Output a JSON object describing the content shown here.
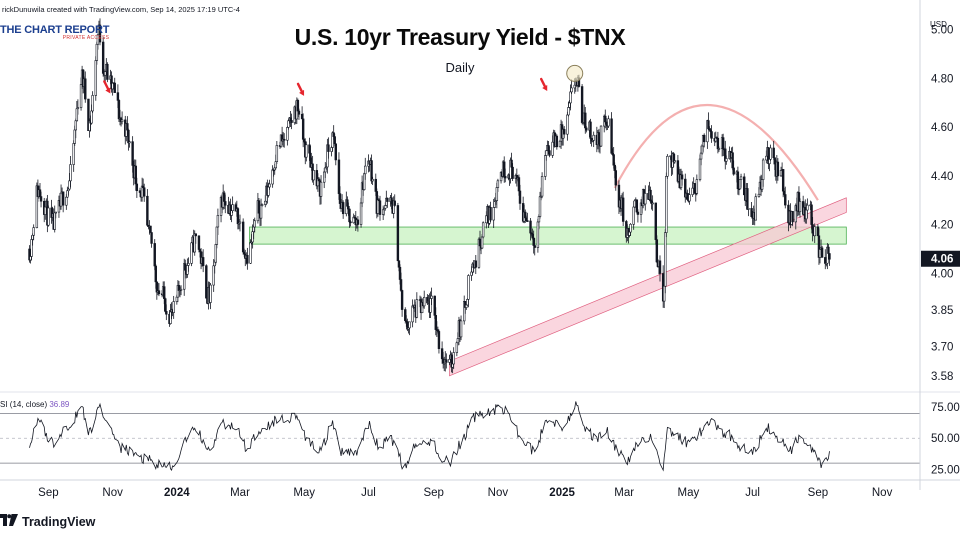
{
  "header": {
    "credit": "rickDunuwila created with TradingView.com, Sep 14, 2025 17:19 UTC-4"
  },
  "brand": {
    "name": "THE CHART REPORT",
    "tagline": "PRIVATE ACCESS"
  },
  "footer": {
    "brand": "TradingView"
  },
  "colors": {
    "candle": "#131722",
    "support_band": "#c8f2c0",
    "support_edge": "#4caf50",
    "trend_channel": "#f8c8d4",
    "trend_edge": "#e06080",
    "arc": "#f4b0b0",
    "marker_arrow": "#e5262e",
    "highlight_circle": "#f3e9c4",
    "axis_text": "#131722",
    "price_badge": "#131722"
  },
  "chart_data": [
    {
      "type": "candlestick",
      "title": "U.S. 10yr Treasury Yield - $TNX",
      "subtitle": "Daily",
      "currency_label": "USD",
      "y_ticks": [
        "5.00",
        "4.80",
        "4.60",
        "4.40",
        "4.20",
        "4.00",
        "3.85",
        "3.70",
        "3.58"
      ],
      "ylim": [
        3.53,
        5.08
      ],
      "x_ticks": [
        "Sep",
        "Nov",
        "2024",
        "Mar",
        "May",
        "Jul",
        "Sep",
        "Nov",
        "2025",
        "Mar",
        "May",
        "Jul",
        "Sep",
        "Nov"
      ],
      "x_ticks_bold": [
        "2024",
        "2025"
      ],
      "last_price": "4.06",
      "path_points": [
        [
          "2023-08-14",
          4.1
        ],
        [
          "2023-08-22",
          4.34
        ],
        [
          "2023-09-05",
          4.2
        ],
        [
          "2023-09-19",
          4.35
        ],
        [
          "2023-10-03",
          4.8
        ],
        [
          "2023-10-10",
          4.62
        ],
        [
          "2023-10-19",
          4.99
        ],
        [
          "2023-10-24",
          4.84
        ],
        [
          "2023-11-01",
          4.76
        ],
        [
          "2023-11-10",
          4.62
        ],
        [
          "2023-11-28",
          4.34
        ],
        [
          "2023-12-06",
          4.15
        ],
        [
          "2023-12-15",
          3.93
        ],
        [
          "2023-12-27",
          3.83
        ],
        [
          "2024-01-10",
          4.03
        ],
        [
          "2024-01-19",
          4.14
        ],
        [
          "2024-02-01",
          3.9
        ],
        [
          "2024-02-13",
          4.31
        ],
        [
          "2024-02-26",
          4.25
        ],
        [
          "2024-03-08",
          4.08
        ],
        [
          "2024-03-20",
          4.27
        ],
        [
          "2024-04-10",
          4.54
        ],
        [
          "2024-04-25",
          4.68
        ],
        [
          "2024-05-03",
          4.5
        ],
        [
          "2024-05-15",
          4.35
        ],
        [
          "2024-05-28",
          4.55
        ],
        [
          "2024-06-05",
          4.28
        ],
        [
          "2024-06-19",
          4.21
        ],
        [
          "2024-07-01",
          4.47
        ],
        [
          "2024-07-10",
          4.28
        ],
        [
          "2024-07-24",
          4.28
        ],
        [
          "2024-08-05",
          3.78
        ],
        [
          "2024-08-14",
          3.85
        ],
        [
          "2024-08-29",
          3.87
        ],
        [
          "2024-09-11",
          3.65
        ],
        [
          "2024-09-16",
          3.62
        ],
        [
          "2024-09-26",
          3.78
        ],
        [
          "2024-10-08",
          4.03
        ],
        [
          "2024-10-23",
          4.24
        ],
        [
          "2024-11-06",
          4.43
        ],
        [
          "2024-11-15",
          4.43
        ],
        [
          "2024-11-26",
          4.24
        ],
        [
          "2024-12-06",
          4.15
        ],
        [
          "2024-12-18",
          4.52
        ],
        [
          "2025-01-02",
          4.57
        ],
        [
          "2025-01-14",
          4.79
        ],
        [
          "2025-01-22",
          4.62
        ],
        [
          "2025-02-03",
          4.54
        ],
        [
          "2025-02-12",
          4.62
        ],
        [
          "2025-02-25",
          4.3
        ],
        [
          "2025-03-04",
          4.15
        ],
        [
          "2025-03-12",
          4.27
        ],
        [
          "2025-03-26",
          4.33
        ],
        [
          "2025-04-04",
          4.0
        ],
        [
          "2025-04-07",
          3.9
        ],
        [
          "2025-04-11",
          4.49
        ],
        [
          "2025-04-22",
          4.39
        ],
        [
          "2025-05-02",
          4.3
        ],
        [
          "2025-05-21",
          4.6
        ],
        [
          "2025-06-06",
          4.5
        ],
        [
          "2025-06-20",
          4.36
        ],
        [
          "2025-07-01",
          4.25
        ],
        [
          "2025-07-15",
          4.48
        ],
        [
          "2025-07-28",
          4.41
        ],
        [
          "2025-08-04",
          4.22
        ],
        [
          "2025-08-14",
          4.29
        ],
        [
          "2025-08-22",
          4.26
        ],
        [
          "2025-09-05",
          4.08
        ],
        [
          "2025-09-12",
          4.06
        ]
      ],
      "annotations": {
        "support_zone": {
          "from": 4.12,
          "to": 4.19,
          "start": "2024-03-10",
          "end": "2025-09-28"
        },
        "trend_channel": {
          "start": [
            "2024-09-16",
            3.58
          ],
          "end": [
            "2025-09-28",
            4.25
          ],
          "width": 0.06
        },
        "rounding_top_arc": {
          "points": [
            [
              "2025-02-20",
              4.35
            ],
            [
              "2025-05-22",
              4.69
            ],
            [
              "2025-09-01",
              4.3
            ]
          ]
        },
        "arrows": [
          [
            "2023-10-27",
            4.75
          ],
          [
            "2024-04-28",
            4.74
          ],
          [
            "2024-12-15",
            4.76
          ]
        ],
        "circle": [
          "2025-01-13",
          4.82
        ]
      }
    },
    {
      "type": "line",
      "series": [
        {
          "name": "RSI (14, close)"
        }
      ],
      "label": "RSI (14, close)",
      "value": "36.89",
      "y_ticks": [
        "75.00",
        "50.00",
        "25.00"
      ],
      "ylim": [
        18,
        84
      ],
      "guide_lines": [
        30,
        50,
        70
      ],
      "path_points": [
        [
          "2023-08-14",
          44
        ],
        [
          "2023-08-22",
          64
        ],
        [
          "2023-09-05",
          46
        ],
        [
          "2023-09-19",
          60
        ],
        [
          "2023-10-03",
          72
        ],
        [
          "2023-10-10",
          55
        ],
        [
          "2023-10-19",
          76
        ],
        [
          "2023-10-24",
          62
        ],
        [
          "2023-11-01",
          55
        ],
        [
          "2023-11-10",
          42
        ],
        [
          "2023-11-28",
          34
        ],
        [
          "2023-12-06",
          33
        ],
        [
          "2023-12-15",
          28
        ],
        [
          "2023-12-27",
          26
        ],
        [
          "2024-01-10",
          48
        ],
        [
          "2024-01-19",
          58
        ],
        [
          "2024-02-01",
          38
        ],
        [
          "2024-02-13",
          62
        ],
        [
          "2024-02-26",
          58
        ],
        [
          "2024-03-08",
          42
        ],
        [
          "2024-03-20",
          58
        ],
        [
          "2024-04-10",
          66
        ],
        [
          "2024-04-25",
          68
        ],
        [
          "2024-05-03",
          50
        ],
        [
          "2024-05-15",
          38
        ],
        [
          "2024-05-28",
          60
        ],
        [
          "2024-06-05",
          38
        ],
        [
          "2024-06-19",
          40
        ],
        [
          "2024-07-01",
          60
        ],
        [
          "2024-07-10",
          45
        ],
        [
          "2024-07-24",
          48
        ],
        [
          "2024-08-05",
          26
        ],
        [
          "2024-08-14",
          42
        ],
        [
          "2024-08-29",
          48
        ],
        [
          "2024-09-11",
          32
        ],
        [
          "2024-09-16",
          30
        ],
        [
          "2024-09-26",
          44
        ],
        [
          "2024-10-08",
          66
        ],
        [
          "2024-10-23",
          72
        ],
        [
          "2024-11-06",
          74
        ],
        [
          "2024-11-15",
          62
        ],
        [
          "2024-11-26",
          46
        ],
        [
          "2024-12-06",
          40
        ],
        [
          "2024-12-18",
          66
        ],
        [
          "2025-01-02",
          60
        ],
        [
          "2025-01-14",
          76
        ],
        [
          "2025-01-22",
          58
        ],
        [
          "2025-02-03",
          50
        ],
        [
          "2025-02-12",
          56
        ],
        [
          "2025-02-25",
          36
        ],
        [
          "2025-03-04",
          30
        ],
        [
          "2025-03-12",
          44
        ],
        [
          "2025-03-26",
          52
        ],
        [
          "2025-04-04",
          32
        ],
        [
          "2025-04-07",
          28
        ],
        [
          "2025-04-11",
          58
        ],
        [
          "2025-04-22",
          50
        ],
        [
          "2025-05-02",
          46
        ],
        [
          "2025-05-21",
          62
        ],
        [
          "2025-06-06",
          54
        ],
        [
          "2025-06-20",
          44
        ],
        [
          "2025-07-01",
          40
        ],
        [
          "2025-07-15",
          58
        ],
        [
          "2025-07-28",
          50
        ],
        [
          "2025-08-04",
          38
        ],
        [
          "2025-08-14",
          50
        ],
        [
          "2025-08-22",
          44
        ],
        [
          "2025-09-05",
          30
        ],
        [
          "2025-09-12",
          37
        ]
      ]
    }
  ]
}
